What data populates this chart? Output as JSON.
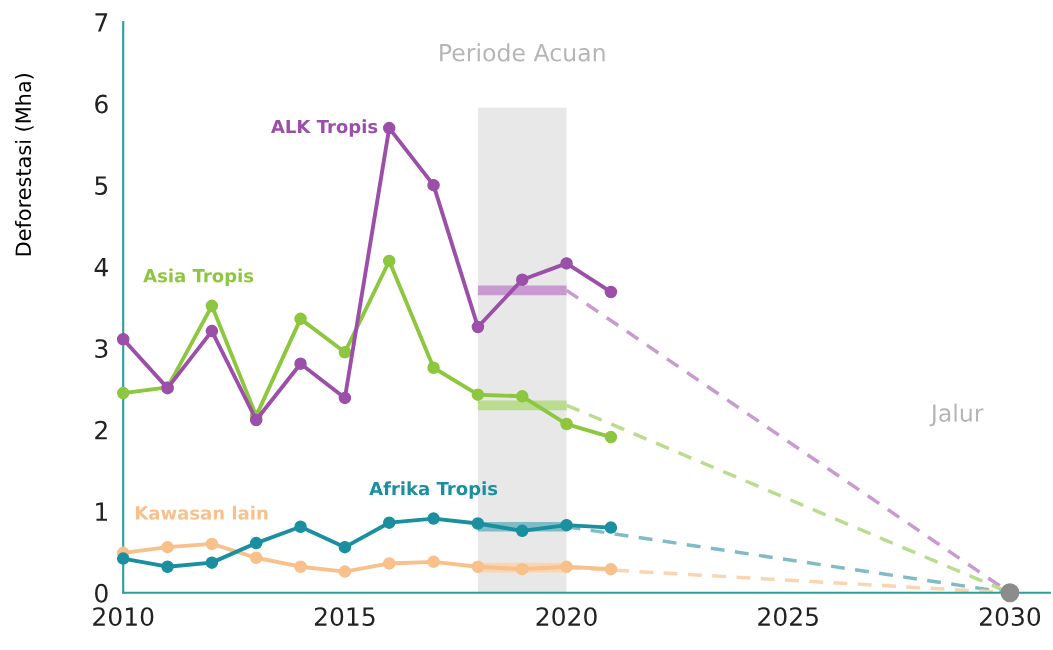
{
  "chart_data": {
    "type": "line",
    "ylabel": "Deforestasi (Mha)",
    "xlim": [
      2010,
      2030.9
    ],
    "xticks": [
      2010,
      2015,
      2020,
      2025,
      2030
    ],
    "ylim": [
      0,
      7
    ],
    "yticks": [
      0,
      1,
      2,
      3,
      4,
      5,
      6,
      7
    ],
    "grid": false,
    "legend": false,
    "bands": [
      {
        "axis": "x",
        "from": 2018,
        "to": 2020,
        "label": "Periode Acuan",
        "color": "#e8e8e8"
      }
    ],
    "annotations": [
      "Jalur"
    ],
    "series": [
      {
        "name": "ALK Tropis",
        "color": "#9b4fa8",
        "marker": "circle",
        "line_style": "solid",
        "x": [
          2010,
          2011,
          2012,
          2013,
          2014,
          2015,
          2016,
          2017,
          2018,
          2019,
          2020,
          2021
        ],
        "values": [
          3.11,
          2.51,
          3.21,
          2.12,
          2.81,
          2.39,
          5.7,
          5.0,
          3.26,
          3.84,
          4.04,
          3.69
        ]
      },
      {
        "name": "Asia Tropis",
        "color": "#8dc63f",
        "marker": "circle",
        "line_style": "solid",
        "x": [
          2010,
          2011,
          2012,
          2013,
          2014,
          2015,
          2016,
          2017,
          2018,
          2019,
          2020,
          2021
        ],
        "values": [
          2.45,
          2.52,
          3.52,
          2.17,
          3.36,
          2.95,
          4.07,
          2.76,
          2.43,
          2.41,
          2.07,
          1.91
        ]
      },
      {
        "name": "Afrika Tropis",
        "color": "#1a8fa0",
        "marker": "circle",
        "line_style": "solid",
        "x": [
          2010,
          2011,
          2012,
          2013,
          2014,
          2015,
          2016,
          2017,
          2018,
          2019,
          2020,
          2021
        ],
        "values": [
          0.42,
          0.32,
          0.37,
          0.61,
          0.81,
          0.56,
          0.86,
          0.91,
          0.85,
          0.76,
          0.83,
          0.8
        ]
      },
      {
        "name": "Kawasan lain",
        "color": "#f8c08a",
        "marker": "circle",
        "line_style": "solid",
        "x": [
          2010,
          2011,
          2012,
          2013,
          2014,
          2015,
          2016,
          2017,
          2018,
          2019,
          2020,
          2021
        ],
        "values": [
          0.49,
          0.56,
          0.6,
          0.43,
          0.32,
          0.26,
          0.36,
          0.38,
          0.32,
          0.29,
          0.32,
          0.29
        ]
      },
      {
        "color": "#c99ad2",
        "marker": "none",
        "line_style": "solid",
        "x": [
          2018,
          2020
        ],
        "values": [
          3.71,
          3.71
        ]
      },
      {
        "color": "#b9dc8e",
        "marker": "none",
        "line_style": "solid",
        "x": [
          2018,
          2020
        ],
        "values": [
          2.3,
          2.3
        ]
      },
      {
        "color": "#7fbcc6",
        "marker": "none",
        "line_style": "solid",
        "x": [
          2018,
          2020
        ],
        "values": [
          0.81,
          0.81
        ]
      },
      {
        "color": "#fad5b0",
        "marker": "none",
        "line_style": "solid",
        "x": [
          2018,
          2020
        ],
        "values": [
          0.31,
          0.31
        ]
      },
      {
        "color": "#c99ad2",
        "marker": "none",
        "line_style": "dashed",
        "x": [
          2020,
          2030
        ],
        "values": [
          3.71,
          0
        ]
      },
      {
        "color": "#b9dc8e",
        "marker": "none",
        "line_style": "dashed",
        "x": [
          2020,
          2030
        ],
        "values": [
          2.3,
          0
        ]
      },
      {
        "color": "#7fbcc6",
        "marker": "none",
        "line_style": "dashed",
        "x": [
          2020,
          2030
        ],
        "values": [
          0.81,
          0
        ]
      },
      {
        "color": "#fad5b0",
        "marker": "none",
        "line_style": "dashed",
        "x": [
          2020,
          2030
        ],
        "values": [
          0.31,
          0
        ]
      },
      {
        "type": "scatter",
        "color": "#8c8c8c",
        "marker": "circle",
        "x": [
          2030
        ],
        "values": [
          0
        ]
      }
    ]
  }
}
